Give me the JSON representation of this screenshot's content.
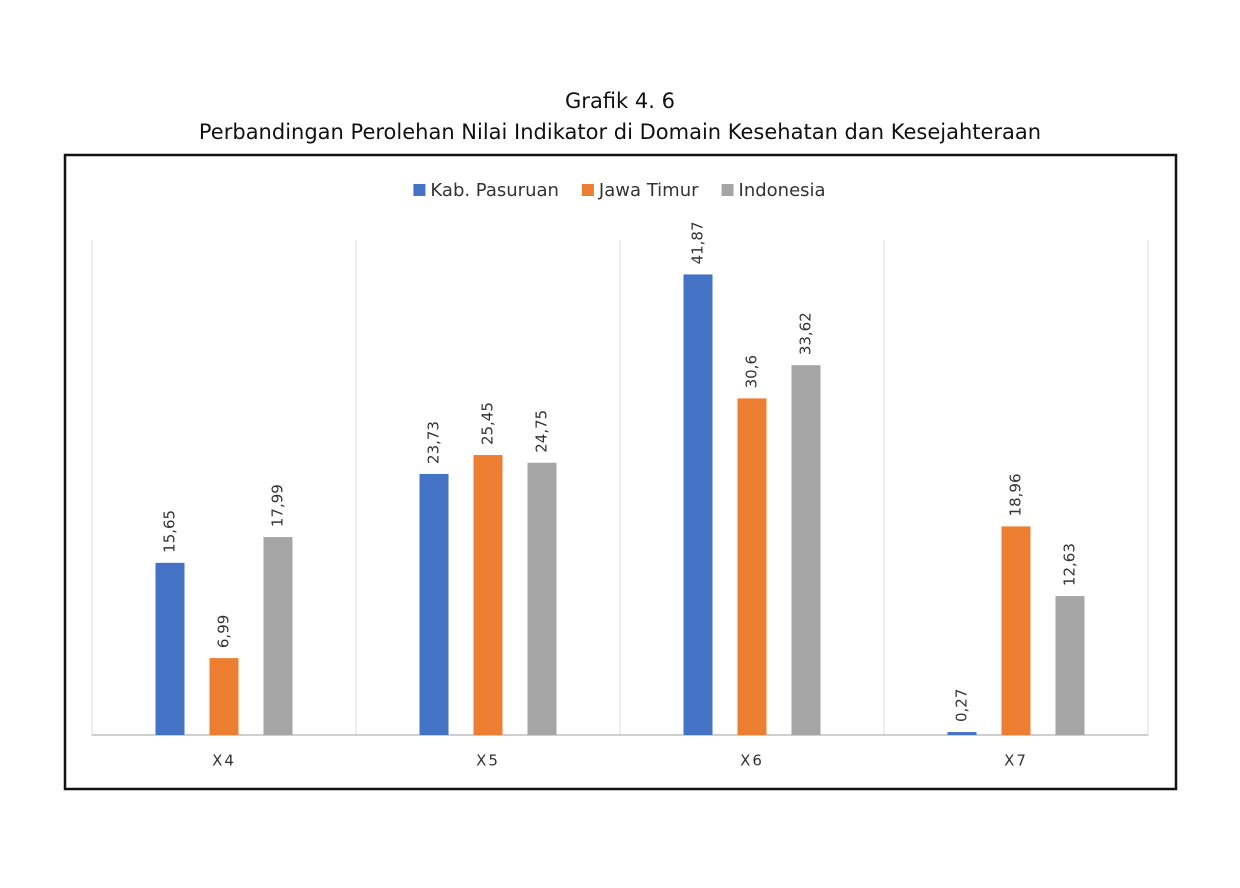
{
  "chart_data": {
    "type": "bar",
    "title": "Grafik 4. 6",
    "subtitle": "Perbandingan Perolehan Nilai Indikator di Domain Kesehatan dan Kesejahteraan",
    "categories": [
      "X4",
      "X5",
      "X6",
      "X7"
    ],
    "series": [
      {
        "name": "Kab. Pasuruan",
        "color": "#4472c4",
        "values": [
          15.65,
          23.73,
          41.87,
          0.27
        ],
        "value_labels": [
          "15,65",
          "23,73",
          "41,87",
          "0,27"
        ]
      },
      {
        "name": "Jawa Timur",
        "color": "#ed7d31",
        "values": [
          6.99,
          25.45,
          30.6,
          18.96
        ],
        "value_labels": [
          "6,99",
          "25,45",
          "30,6",
          "18,96"
        ]
      },
      {
        "name": "Indonesia",
        "color": "#a5a5a5",
        "values": [
          17.99,
          24.75,
          33.62,
          12.63
        ],
        "value_labels": [
          "17,99",
          "24,75",
          "33,62",
          "12,63"
        ]
      }
    ],
    "ylim": [
      0,
      45
    ],
    "legend": "top"
  }
}
